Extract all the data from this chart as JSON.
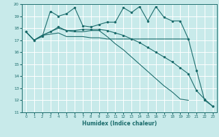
{
  "title": "",
  "xlabel": "Humidex (Indice chaleur)",
  "xlim": [
    -0.5,
    23.5
  ],
  "ylim": [
    11,
    20
  ],
  "xticks": [
    0,
    1,
    2,
    3,
    4,
    5,
    6,
    7,
    8,
    9,
    10,
    11,
    12,
    13,
    14,
    15,
    16,
    17,
    18,
    19,
    20,
    21,
    22,
    23
  ],
  "yticks": [
    11,
    12,
    13,
    14,
    15,
    16,
    17,
    18,
    19,
    20
  ],
  "bg_color": "#c8eaea",
  "grid_color": "#ffffff",
  "line_color": "#1a6b6b",
  "line1_x": [
    0,
    1,
    2,
    3,
    4,
    5,
    6,
    7,
    8,
    9,
    10,
    11,
    12,
    13,
    14,
    15,
    16,
    17,
    18,
    19,
    20,
    21,
    22,
    23
  ],
  "line1_y": [
    17.7,
    17.0,
    17.3,
    19.4,
    19.0,
    19.2,
    19.7,
    18.2,
    18.1,
    18.3,
    18.5,
    18.5,
    19.7,
    19.3,
    19.8,
    18.6,
    19.8,
    18.9,
    18.6,
    18.6,
    17.1,
    14.5,
    12.0,
    11.5
  ],
  "line2_x": [
    0,
    1,
    2,
    3,
    4,
    5,
    6,
    7,
    8,
    9,
    10,
    11,
    12,
    13,
    14,
    15,
    16,
    17,
    18,
    19,
    20
  ],
  "line2_y": [
    17.7,
    17.0,
    17.4,
    17.5,
    17.6,
    17.3,
    17.3,
    17.3,
    17.2,
    17.2,
    17.1,
    17.1,
    17.1,
    17.1,
    17.1,
    17.1,
    17.1,
    17.1,
    17.1,
    17.1,
    17.1
  ],
  "line3_x": [
    0,
    1,
    2,
    3,
    4,
    5,
    6,
    7,
    8,
    9,
    10,
    11,
    12,
    13,
    14,
    15,
    16,
    17,
    18,
    19,
    20,
    21,
    22,
    23
  ],
  "line3_y": [
    17.7,
    17.0,
    17.4,
    17.7,
    18.1,
    17.8,
    17.8,
    17.9,
    17.9,
    17.9,
    17.8,
    17.6,
    17.4,
    17.1,
    16.8,
    16.4,
    16.0,
    15.6,
    15.2,
    14.7,
    14.2,
    12.8,
    12.1,
    11.5
  ],
  "line4_x": [
    0,
    1,
    2,
    3,
    4,
    5,
    6,
    7,
    8,
    9,
    10,
    11,
    12,
    13,
    14,
    15,
    16,
    17,
    18,
    19,
    20
  ],
  "line4_y": [
    17.7,
    17.0,
    17.4,
    17.7,
    18.0,
    17.8,
    17.7,
    17.7,
    17.8,
    17.8,
    17.3,
    16.7,
    16.2,
    15.6,
    15.0,
    14.4,
    13.8,
    13.2,
    12.7,
    12.1,
    12.0
  ]
}
